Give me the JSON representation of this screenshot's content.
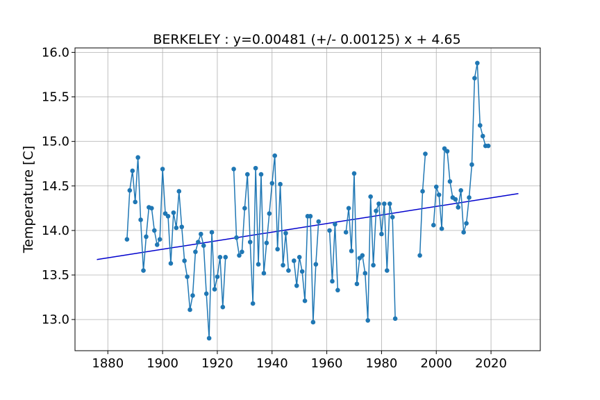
{
  "chart_data": {
    "type": "line",
    "title": "BERKELEY : y=0.00481 (+/- 0.00125) x + 4.65",
    "xlabel": "",
    "ylabel": "Temperature [C]",
    "xlim": [
      1868,
      2038
    ],
    "ylim": [
      12.65,
      16.05
    ],
    "xticks": [
      1880,
      1900,
      1920,
      1940,
      1960,
      1980,
      2000,
      2020
    ],
    "yticks": [
      13.0,
      13.5,
      14.0,
      14.5,
      15.0,
      15.5,
      16.0
    ],
    "ytick_labels": [
      "13.0",
      "13.5",
      "14.0",
      "14.5",
      "15.0",
      "15.5",
      "16.0"
    ],
    "grid": true,
    "colors": {
      "series": "#1f77b4",
      "trend": "#0000cd",
      "grid": "#b0b0b0"
    },
    "series": [
      {
        "segments": [
          [
            [
              1887,
              13.9
            ],
            [
              1888,
              14.45
            ],
            [
              1889,
              14.67
            ],
            [
              1890,
              14.32
            ],
            [
              1891,
              14.82
            ],
            [
              1892,
              14.12
            ],
            [
              1893,
              13.55
            ],
            [
              1894,
              13.93
            ],
            [
              1895,
              14.26
            ],
            [
              1896,
              14.25
            ],
            [
              1897,
              14.0
            ],
            [
              1898,
              13.84
            ],
            [
              1899,
              13.9
            ],
            [
              1900,
              14.69
            ],
            [
              1901,
              14.19
            ],
            [
              1902,
              14.16
            ],
            [
              1903,
              13.63
            ],
            [
              1904,
              14.2
            ],
            [
              1905,
              14.03
            ],
            [
              1906,
              14.44
            ],
            [
              1907,
              14.04
            ],
            [
              1908,
              13.66
            ],
            [
              1909,
              13.48
            ],
            [
              1910,
              13.11
            ],
            [
              1911,
              13.27
            ],
            [
              1912,
              13.76
            ],
            [
              1913,
              13.87
            ],
            [
              1914,
              13.96
            ],
            [
              1915,
              13.83
            ],
            [
              1916,
              13.29
            ],
            [
              1917,
              12.79
            ],
            [
              1918,
              13.98
            ],
            [
              1919,
              13.34
            ],
            [
              1920,
              13.48
            ],
            [
              1921,
              13.7
            ],
            [
              1922,
              13.14
            ],
            [
              1923,
              13.7
            ]
          ],
          [
            [
              1926,
              14.69
            ],
            [
              1927,
              13.92
            ],
            [
              1928,
              13.72
            ],
            [
              1929,
              13.76
            ],
            [
              1930,
              14.25
            ],
            [
              1931,
              14.63
            ],
            [
              1932,
              13.87
            ],
            [
              1933,
              13.18
            ],
            [
              1934,
              14.7
            ],
            [
              1935,
              13.62
            ],
            [
              1936,
              14.63
            ],
            [
              1937,
              13.52
            ],
            [
              1938,
              13.86
            ],
            [
              1939,
              14.19
            ],
            [
              1940,
              14.53
            ],
            [
              1941,
              14.84
            ],
            [
              1942,
              13.79
            ],
            [
              1943,
              14.52
            ],
            [
              1944,
              13.61
            ],
            [
              1945,
              13.97
            ],
            [
              1946,
              13.55
            ]
          ],
          [
            [
              1948,
              13.66
            ],
            [
              1949,
              13.38
            ],
            [
              1950,
              13.7
            ],
            [
              1951,
              13.54
            ],
            [
              1952,
              13.21
            ],
            [
              1953,
              14.16
            ],
            [
              1954,
              14.16
            ],
            [
              1955,
              12.97
            ],
            [
              1956,
              13.62
            ],
            [
              1957,
              14.1
            ]
          ],
          [
            [
              1961,
              14.0
            ],
            [
              1962,
              13.43
            ],
            [
              1963,
              14.07
            ],
            [
              1964,
              13.33
            ]
          ],
          [
            [
              1967,
              13.98
            ],
            [
              1968,
              14.25
            ],
            [
              1969,
              13.77
            ],
            [
              1970,
              14.64
            ],
            [
              1971,
              13.4
            ],
            [
              1972,
              13.69
            ],
            [
              1973,
              13.72
            ],
            [
              1974,
              13.52
            ],
            [
              1975,
              12.99
            ],
            [
              1976,
              14.38
            ],
            [
              1977,
              13.61
            ],
            [
              1978,
              14.22
            ],
            [
              1979,
              14.3
            ],
            [
              1980,
              13.96
            ],
            [
              1981,
              14.3
            ],
            [
              1982,
              13.55
            ],
            [
              1983,
              14.3
            ],
            [
              1984,
              14.15
            ],
            [
              1985,
              13.01
            ]
          ],
          [
            [
              1994,
              13.72
            ],
            [
              1995,
              14.44
            ],
            [
              1996,
              14.86
            ]
          ],
          [
            [
              1999,
              14.06
            ],
            [
              2000,
              14.49
            ],
            [
              2001,
              14.4
            ],
            [
              2002,
              14.02
            ],
            [
              2003,
              14.92
            ],
            [
              2004,
              14.89
            ],
            [
              2005,
              14.55
            ],
            [
              2006,
              14.37
            ],
            [
              2007,
              14.35
            ],
            [
              2008,
              14.26
            ],
            [
              2009,
              14.45
            ],
            [
              2010,
              13.98
            ],
            [
              2011,
              14.08
            ],
            [
              2012,
              14.37
            ],
            [
              2013,
              14.74
            ],
            [
              2014,
              15.71
            ],
            [
              2015,
              15.88
            ],
            [
              2016,
              15.18
            ],
            [
              2017,
              15.06
            ],
            [
              2018,
              14.95
            ],
            [
              2019,
              14.95
            ]
          ]
        ]
      }
    ],
    "trend": {
      "slope": 0.00481,
      "intercept": 4.65,
      "x_start": 1876,
      "x_end": 2030
    }
  }
}
